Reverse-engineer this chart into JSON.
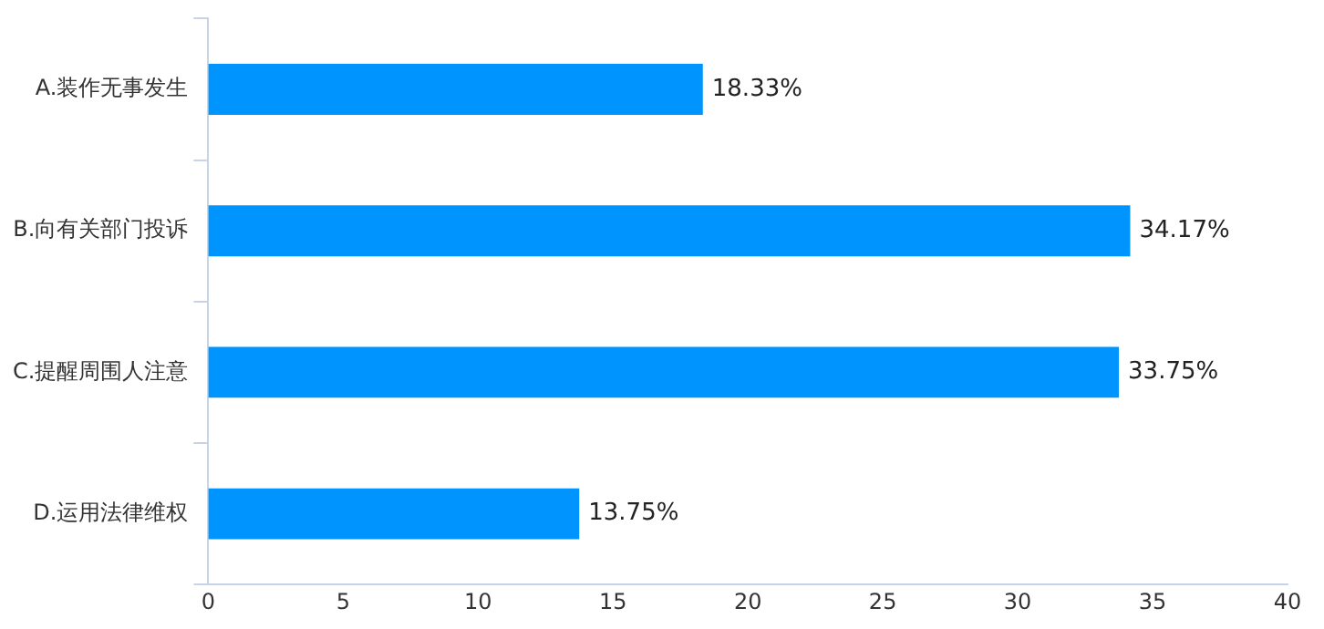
{
  "chart_data": {
    "type": "bar",
    "orientation": "horizontal",
    "categories": [
      "A.装作无事发生",
      "B.向有关部门投诉",
      "C.提醒周围人注意",
      "D.运用法律维权"
    ],
    "values": [
      18.33,
      34.17,
      33.75,
      13.75
    ],
    "value_labels": [
      "18.33%",
      "34.17%",
      "33.75%",
      "13.75%"
    ],
    "color": "#0094ff",
    "xlim": [
      0,
      40
    ],
    "xticks": [
      0,
      5,
      10,
      15,
      20,
      25,
      30,
      35,
      40
    ],
    "grid": false,
    "legend": false
  }
}
